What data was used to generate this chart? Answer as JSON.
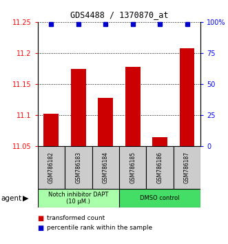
{
  "title": "GDS4488 / 1370870_at",
  "samples": [
    "GSM786182",
    "GSM786183",
    "GSM786184",
    "GSM786185",
    "GSM786186",
    "GSM786187"
  ],
  "bar_values": [
    11.103,
    11.175,
    11.128,
    11.178,
    11.065,
    11.208
  ],
  "percentile_values": [
    98,
    98,
    98,
    98,
    98,
    98
  ],
  "bar_color": "#CC0000",
  "dot_color": "#0000CC",
  "ylim_left": [
    11.05,
    11.25
  ],
  "ylim_right": [
    0,
    100
  ],
  "yticks_left": [
    11.05,
    11.1,
    11.15,
    11.2,
    11.25
  ],
  "ytick_labels_left": [
    "11.05",
    "11.1",
    "11.15",
    "11.2",
    "11.25"
  ],
  "yticks_right": [
    0,
    25,
    50,
    75,
    100
  ],
  "ytick_labels_right": [
    "0",
    "25",
    "50",
    "75",
    "100%"
  ],
  "groups": [
    {
      "label": "Notch inhibitor DAPT\n(10 μM.)",
      "n_samples": 3,
      "color": "#AAFFAA"
    },
    {
      "label": "DMSO control",
      "n_samples": 3,
      "color": "#44DD66"
    }
  ],
  "agent_label": "agent",
  "legend_bar_label": "transformed count",
  "legend_dot_label": "percentile rank within the sample",
  "bar_width": 0.55,
  "background_color": "#ffffff"
}
